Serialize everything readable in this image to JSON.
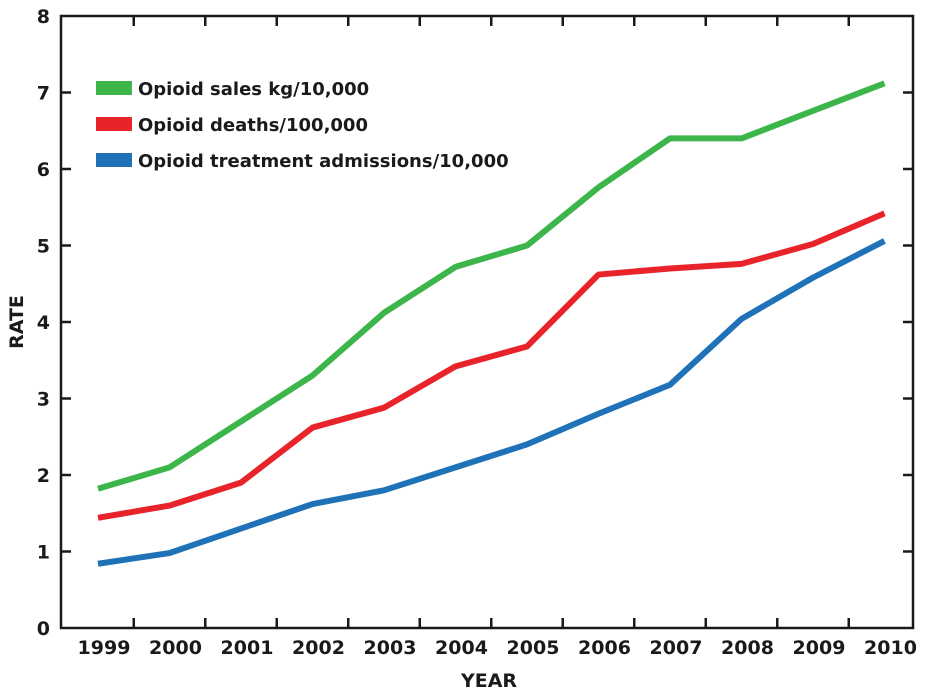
{
  "chart_data": {
    "type": "line",
    "x": [
      "1999",
      "2000",
      "2001",
      "2002",
      "2003",
      "2004",
      "2005",
      "2006",
      "2007",
      "2008",
      "2009",
      "2010"
    ],
    "xlabel": "YEAR",
    "ylabel": "RATE",
    "ylim": [
      0,
      8
    ],
    "yticks": [
      "0",
      "1",
      "2",
      "3",
      "4",
      "5",
      "6",
      "7",
      "8"
    ],
    "grid": false,
    "legend_position": "top-left",
    "series": [
      {
        "name": "Opioid sales kg/10,000",
        "color": "#3cb54a",
        "values": [
          1.82,
          2.1,
          2.7,
          3.3,
          4.12,
          4.72,
          5.0,
          5.76,
          6.4,
          6.4,
          6.76,
          7.12
        ]
      },
      {
        "name": "Opioid deaths/100,000",
        "color": "#e8232a",
        "values": [
          1.44,
          1.6,
          1.9,
          2.62,
          2.88,
          3.42,
          3.68,
          4.62,
          4.7,
          4.76,
          5.02,
          5.42
        ]
      },
      {
        "name": "Opioid treatment admissions/10,000",
        "color": "#1f72b8",
        "values": [
          0.84,
          0.98,
          1.3,
          1.62,
          1.8,
          2.1,
          2.4,
          2.8,
          3.18,
          4.04,
          4.58,
          5.06
        ]
      }
    ]
  }
}
